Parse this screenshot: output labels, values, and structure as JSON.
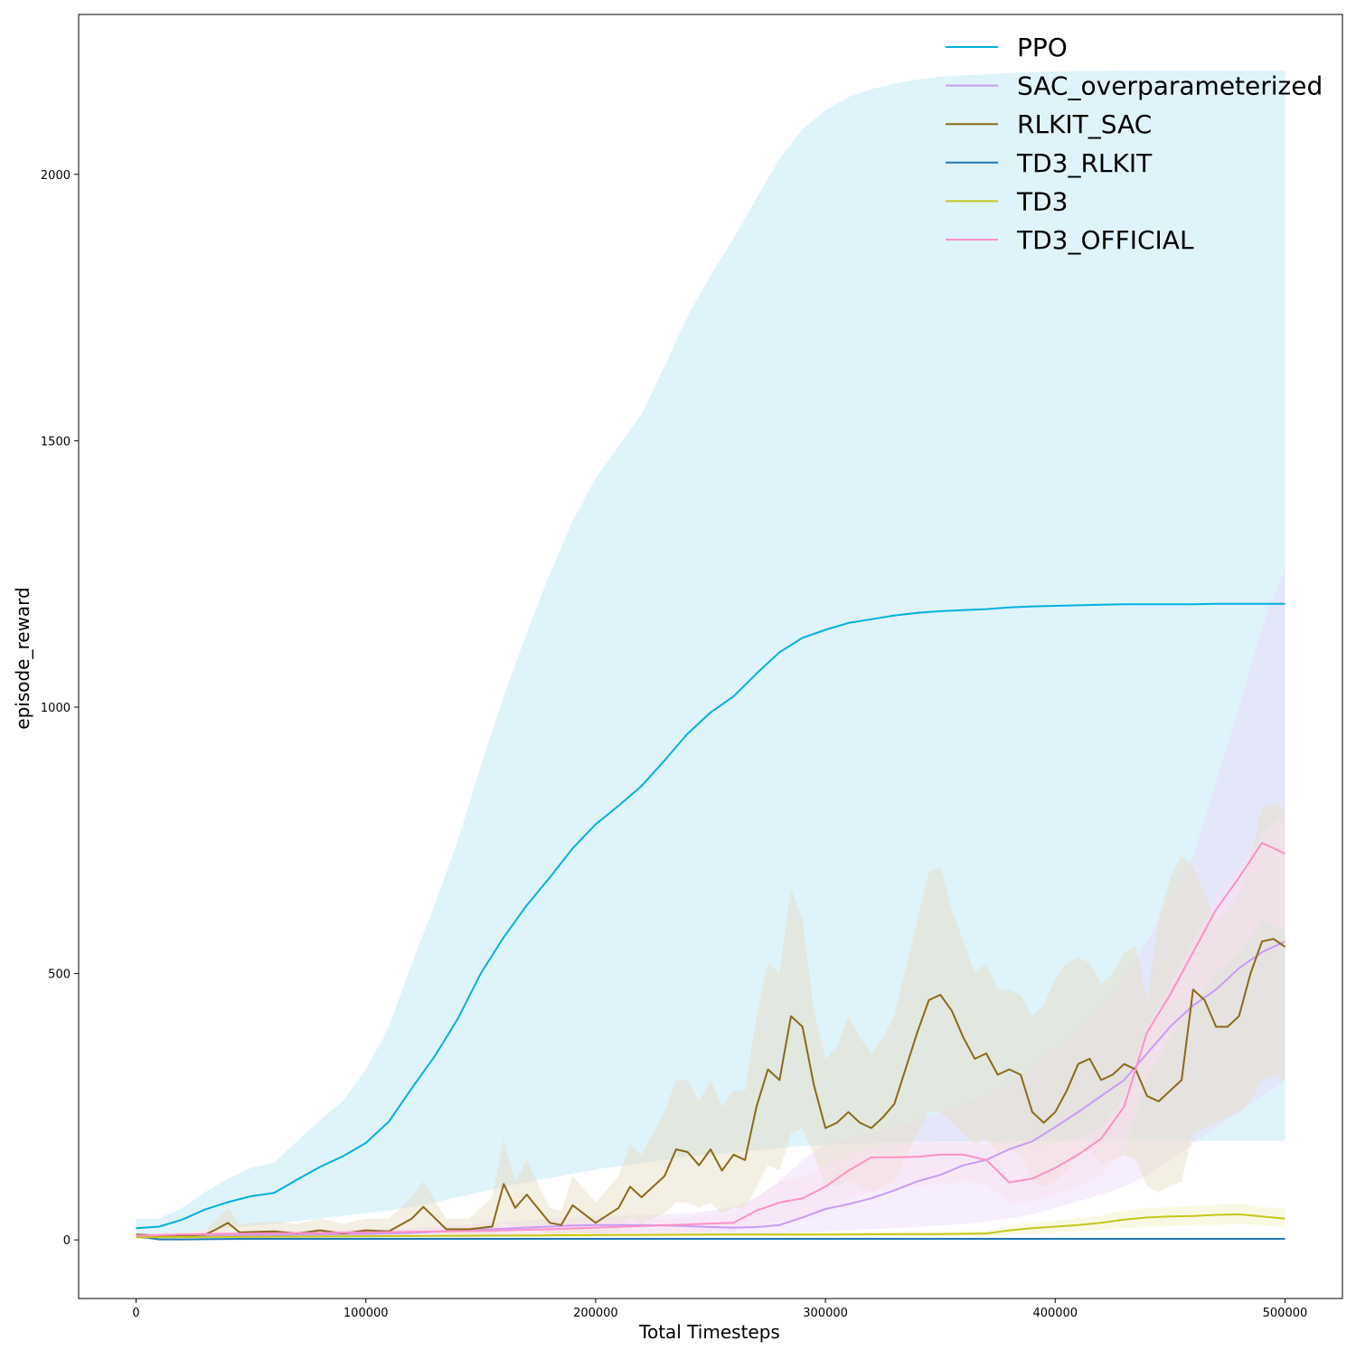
{
  "chart_data": {
    "type": "line",
    "title": "",
    "xlabel": "Total Timesteps",
    "ylabel": "episode_reward",
    "xlim": [
      -25000,
      525000
    ],
    "ylim": [
      -110,
      2300
    ],
    "xticks": [
      0,
      100000,
      200000,
      300000,
      400000,
      500000
    ],
    "xtick_labels": [
      "0",
      "100000",
      "200000",
      "300000",
      "400000",
      "500000"
    ],
    "yticks": [
      0,
      500,
      1000,
      1500,
      2000
    ],
    "ytick_labels": [
      "0",
      "500",
      "1000",
      "1500",
      "2000"
    ],
    "grid": false,
    "legend_position": "top-right",
    "series": [
      {
        "name": "PPO",
        "color": "#00b0e0",
        "band_color": "#b8e4f4",
        "x": [
          0,
          10000,
          20000,
          30000,
          40000,
          50000,
          60000,
          70000,
          80000,
          90000,
          100000,
          110000,
          120000,
          130000,
          140000,
          150000,
          160000,
          170000,
          180000,
          190000,
          200000,
          210000,
          220000,
          230000,
          240000,
          250000,
          260000,
          270000,
          280000,
          290000,
          300000,
          310000,
          320000,
          330000,
          340000,
          350000,
          360000,
          370000,
          380000,
          390000,
          400000,
          410000,
          420000,
          430000,
          440000,
          450000,
          460000,
          470000,
          480000,
          490000,
          500000
        ],
        "y": [
          22,
          25,
          38,
          57,
          71,
          82,
          88,
          113,
          137,
          157,
          182,
          222,
          285,
          345,
          415,
          500,
          568,
          628,
          680,
          735,
          780,
          815,
          852,
          900,
          950,
          990,
          1020,
          1063,
          1103,
          1130,
          1145,
          1158,
          1165,
          1172,
          1177,
          1180,
          1182,
          1184,
          1187,
          1189,
          1190,
          1191,
          1192,
          1193,
          1193,
          1193,
          1193,
          1194,
          1194,
          1194,
          1194
        ],
        "upper": [
          40,
          40,
          60,
          90,
          115,
          135,
          145,
          185,
          225,
          260,
          320,
          400,
          520,
          630,
          750,
          890,
          1020,
          1140,
          1250,
          1350,
          1430,
          1490,
          1550,
          1640,
          1735,
          1810,
          1880,
          1955,
          2030,
          2085,
          2120,
          2145,
          2160,
          2170,
          2178,
          2183,
          2186,
          2188,
          2190,
          2192,
          2193,
          2194,
          2194,
          2195,
          2195,
          2195,
          2195,
          2195,
          2195,
          2195,
          2195
        ],
        "lower": [
          4,
          8,
          12,
          18,
          22,
          26,
          30,
          35,
          40,
          45,
          50,
          55,
          62,
          70,
          80,
          90,
          100,
          108,
          116,
          124,
          132,
          138,
          144,
          150,
          156,
          160,
          164,
          168,
          172,
          176,
          178,
          180,
          182,
          183,
          184,
          185,
          185,
          185,
          186,
          186,
          186,
          186,
          186,
          186,
          186,
          186,
          186,
          186,
          186,
          186,
          186
        ]
      },
      {
        "name": "SAC_overparameterized",
        "color": "#c99af5",
        "band_color": "#ead9fb",
        "x": [
          0,
          10000,
          20000,
          30000,
          40000,
          50000,
          60000,
          70000,
          80000,
          90000,
          100000,
          110000,
          120000,
          130000,
          140000,
          150000,
          160000,
          170000,
          180000,
          190000,
          200000,
          210000,
          220000,
          230000,
          240000,
          250000,
          260000,
          270000,
          280000,
          290000,
          300000,
          310000,
          320000,
          330000,
          340000,
          350000,
          360000,
          370000,
          380000,
          390000,
          400000,
          410000,
          420000,
          430000,
          440000,
          450000,
          460000,
          470000,
          480000,
          490000,
          500000
        ],
        "y": [
          8,
          6,
          7,
          8,
          8,
          9,
          9,
          10,
          10,
          11,
          11,
          12,
          13,
          15,
          17,
          19,
          21,
          23,
          25,
          27,
          28,
          28,
          28,
          27,
          26,
          24,
          23,
          24,
          28,
          42,
          58,
          67,
          78,
          93,
          110,
          122,
          140,
          150,
          170,
          185,
          212,
          240,
          270,
          300,
          350,
          400,
          440,
          470,
          510,
          540,
          560
        ],
        "upper": [
          12,
          10,
          11,
          12,
          13,
          14,
          15,
          16,
          17,
          18,
          19,
          20,
          22,
          25,
          28,
          31,
          34,
          37,
          40,
          43,
          45,
          46,
          47,
          48,
          50,
          55,
          62,
          80,
          110,
          150,
          180,
          190,
          200,
          210,
          225,
          240,
          255,
          270,
          295,
          325,
          360,
          400,
          440,
          490,
          560,
          640,
          720,
          860,
          1000,
          1150,
          1260
        ],
        "lower": [
          4,
          2,
          3,
          4,
          4,
          4,
          4,
          5,
          5,
          5,
          5,
          5,
          6,
          6,
          7,
          8,
          9,
          10,
          11,
          12,
          12,
          12,
          12,
          12,
          11,
          11,
          11,
          11,
          12,
          14,
          16,
          18,
          20,
          22,
          24,
          27,
          30,
          34,
          40,
          48,
          60,
          72,
          85,
          100,
          120,
          150,
          180,
          210,
          240,
          270,
          300
        ]
      },
      {
        "name": "RLKIT_SAC",
        "color": "#8b6914",
        "band_color": "#e7dcc0",
        "x": [
          0,
          10000,
          20000,
          30000,
          35000,
          40000,
          45000,
          60000,
          70000,
          80000,
          90000,
          100000,
          110000,
          120000,
          125000,
          135000,
          145000,
          155000,
          160000,
          165000,
          170000,
          180000,
          185000,
          190000,
          200000,
          210000,
          215000,
          220000,
          230000,
          235000,
          240000,
          245000,
          250000,
          255000,
          260000,
          265000,
          270000,
          275000,
          280000,
          285000,
          290000,
          295000,
          300000,
          305000,
          310000,
          315000,
          320000,
          325000,
          330000,
          340000,
          345000,
          350000,
          355000,
          360000,
          365000,
          370000,
          375000,
          380000,
          385000,
          390000,
          395000,
          400000,
          405000,
          410000,
          415000,
          420000,
          425000,
          430000,
          435000,
          440000,
          445000,
          450000,
          455000,
          460000,
          465000,
          470000,
          475000,
          480000,
          485000,
          490000,
          495000,
          500000
        ],
        "y": [
          10,
          8,
          8,
          10,
          20,
          32,
          14,
          16,
          12,
          18,
          12,
          18,
          16,
          40,
          62,
          20,
          20,
          25,
          105,
          60,
          85,
          32,
          28,
          65,
          32,
          60,
          100,
          80,
          120,
          170,
          165,
          140,
          170,
          130,
          160,
          150,
          250,
          320,
          300,
          420,
          400,
          290,
          210,
          220,
          240,
          220,
          210,
          230,
          255,
          390,
          450,
          460,
          430,
          380,
          340,
          350,
          310,
          320,
          310,
          240,
          220,
          240,
          280,
          330,
          340,
          300,
          310,
          330,
          320,
          270,
          260,
          280,
          300,
          470,
          450,
          400,
          400,
          420,
          500,
          560,
          565,
          550
        ],
        "upper": [
          12,
          12,
          14,
          18,
          40,
          60,
          30,
          35,
          30,
          40,
          30,
          40,
          40,
          80,
          110,
          40,
          40,
          80,
          190,
          110,
          150,
          60,
          55,
          120,
          70,
          120,
          180,
          160,
          240,
          300,
          300,
          260,
          300,
          250,
          280,
          280,
          420,
          520,
          500,
          660,
          600,
          430,
          340,
          360,
          420,
          380,
          350,
          380,
          420,
          600,
          690,
          700,
          620,
          560,
          500,
          520,
          470,
          470,
          460,
          420,
          440,
          490,
          520,
          530,
          520,
          480,
          500,
          540,
          550,
          450,
          600,
          680,
          720,
          700,
          650,
          600,
          620,
          650,
          720,
          810,
          820,
          810
        ],
        "lower": [
          5,
          4,
          4,
          5,
          5,
          10,
          4,
          4,
          4,
          5,
          4,
          5,
          5,
          10,
          20,
          5,
          5,
          5,
          30,
          20,
          25,
          10,
          8,
          15,
          8,
          15,
          40,
          30,
          50,
          70,
          70,
          60,
          70,
          50,
          60,
          60,
          100,
          140,
          130,
          200,
          210,
          160,
          100,
          100,
          110,
          100,
          90,
          100,
          110,
          200,
          240,
          240,
          220,
          200,
          180,
          190,
          160,
          170,
          160,
          110,
          100,
          110,
          130,
          160,
          170,
          140,
          150,
          160,
          150,
          100,
          90,
          100,
          110,
          200,
          210,
          220,
          230,
          240,
          260,
          300,
          310,
          300
        ]
      },
      {
        "name": "TD3_RLKIT",
        "color": "#1f77b4",
        "band_color": "#c6dbef",
        "x": [
          0,
          5000,
          10000,
          20000,
          50000,
          100000,
          150000,
          200000,
          250000,
          300000,
          350000,
          400000,
          450000,
          500000
        ],
        "y": [
          6,
          4,
          1,
          1,
          2,
          2,
          2,
          2,
          2,
          2,
          2,
          2,
          2,
          2
        ],
        "upper": [
          9,
          7,
          4,
          3,
          4,
          4,
          4,
          4,
          4,
          4,
          4,
          4,
          4,
          4
        ],
        "lower": [
          3,
          1,
          -1,
          -1,
          0,
          0,
          0,
          0,
          0,
          0,
          0,
          0,
          0,
          0
        ]
      },
      {
        "name": "TD3",
        "color": "#c6c61a",
        "band_color": "#f2f2c2",
        "x": [
          0,
          50000,
          100000,
          150000,
          200000,
          250000,
          300000,
          350000,
          370000,
          380000,
          390000,
          400000,
          410000,
          420000,
          430000,
          440000,
          450000,
          460000,
          470000,
          480000,
          490000,
          500000
        ],
        "y": [
          5,
          6,
          7,
          8,
          9,
          10,
          10,
          11,
          12,
          18,
          22,
          25,
          28,
          32,
          38,
          42,
          44,
          45,
          47,
          48,
          44,
          40
        ],
        "upper": [
          8,
          9,
          10,
          11,
          12,
          14,
          15,
          16,
          18,
          26,
          32,
          36,
          40,
          46,
          55,
          60,
          62,
          64,
          66,
          68,
          62,
          58
        ],
        "lower": [
          2,
          3,
          4,
          5,
          6,
          6,
          6,
          7,
          7,
          10,
          12,
          14,
          16,
          18,
          22,
          24,
          26,
          27,
          28,
          30,
          27,
          24
        ]
      },
      {
        "name": "TD3_OFFICIAL",
        "color": "#ff8fc8",
        "band_color": "#fbdff0",
        "x": [
          0,
          10000,
          20000,
          30000,
          50000,
          80000,
          100000,
          120000,
          150000,
          180000,
          200000,
          220000,
          240000,
          260000,
          270000,
          280000,
          290000,
          300000,
          310000,
          320000,
          330000,
          340000,
          350000,
          360000,
          370000,
          380000,
          390000,
          400000,
          410000,
          420000,
          430000,
          440000,
          450000,
          460000,
          470000,
          480000,
          490000,
          500000
        ],
        "y": [
          8,
          9,
          10,
          11,
          12,
          13,
          14,
          15,
          17,
          20,
          23,
          26,
          29,
          32,
          55,
          70,
          78,
          100,
          130,
          155,
          155,
          156,
          160,
          160,
          150,
          108,
          115,
          135,
          160,
          190,
          250,
          390,
          460,
          540,
          620,
          680,
          745,
          725
        ],
        "upper": [
          12,
          13,
          14,
          15,
          17,
          19,
          21,
          23,
          26,
          30,
          34,
          38,
          42,
          50,
          80,
          110,
          120,
          140,
          160,
          175,
          178,
          180,
          182,
          182,
          180,
          178,
          178,
          182,
          190,
          210,
          270,
          400,
          480,
          560,
          640,
          700,
          760,
          800
        ],
        "lower": [
          4,
          5,
          6,
          7,
          8,
          8,
          9,
          9,
          10,
          11,
          12,
          13,
          14,
          15,
          25,
          35,
          40,
          55,
          75,
          90,
          95,
          100,
          105,
          110,
          105,
          70,
          72,
          85,
          100,
          120,
          170,
          300,
          380,
          440,
          500,
          540,
          600,
          580
        ]
      }
    ]
  }
}
